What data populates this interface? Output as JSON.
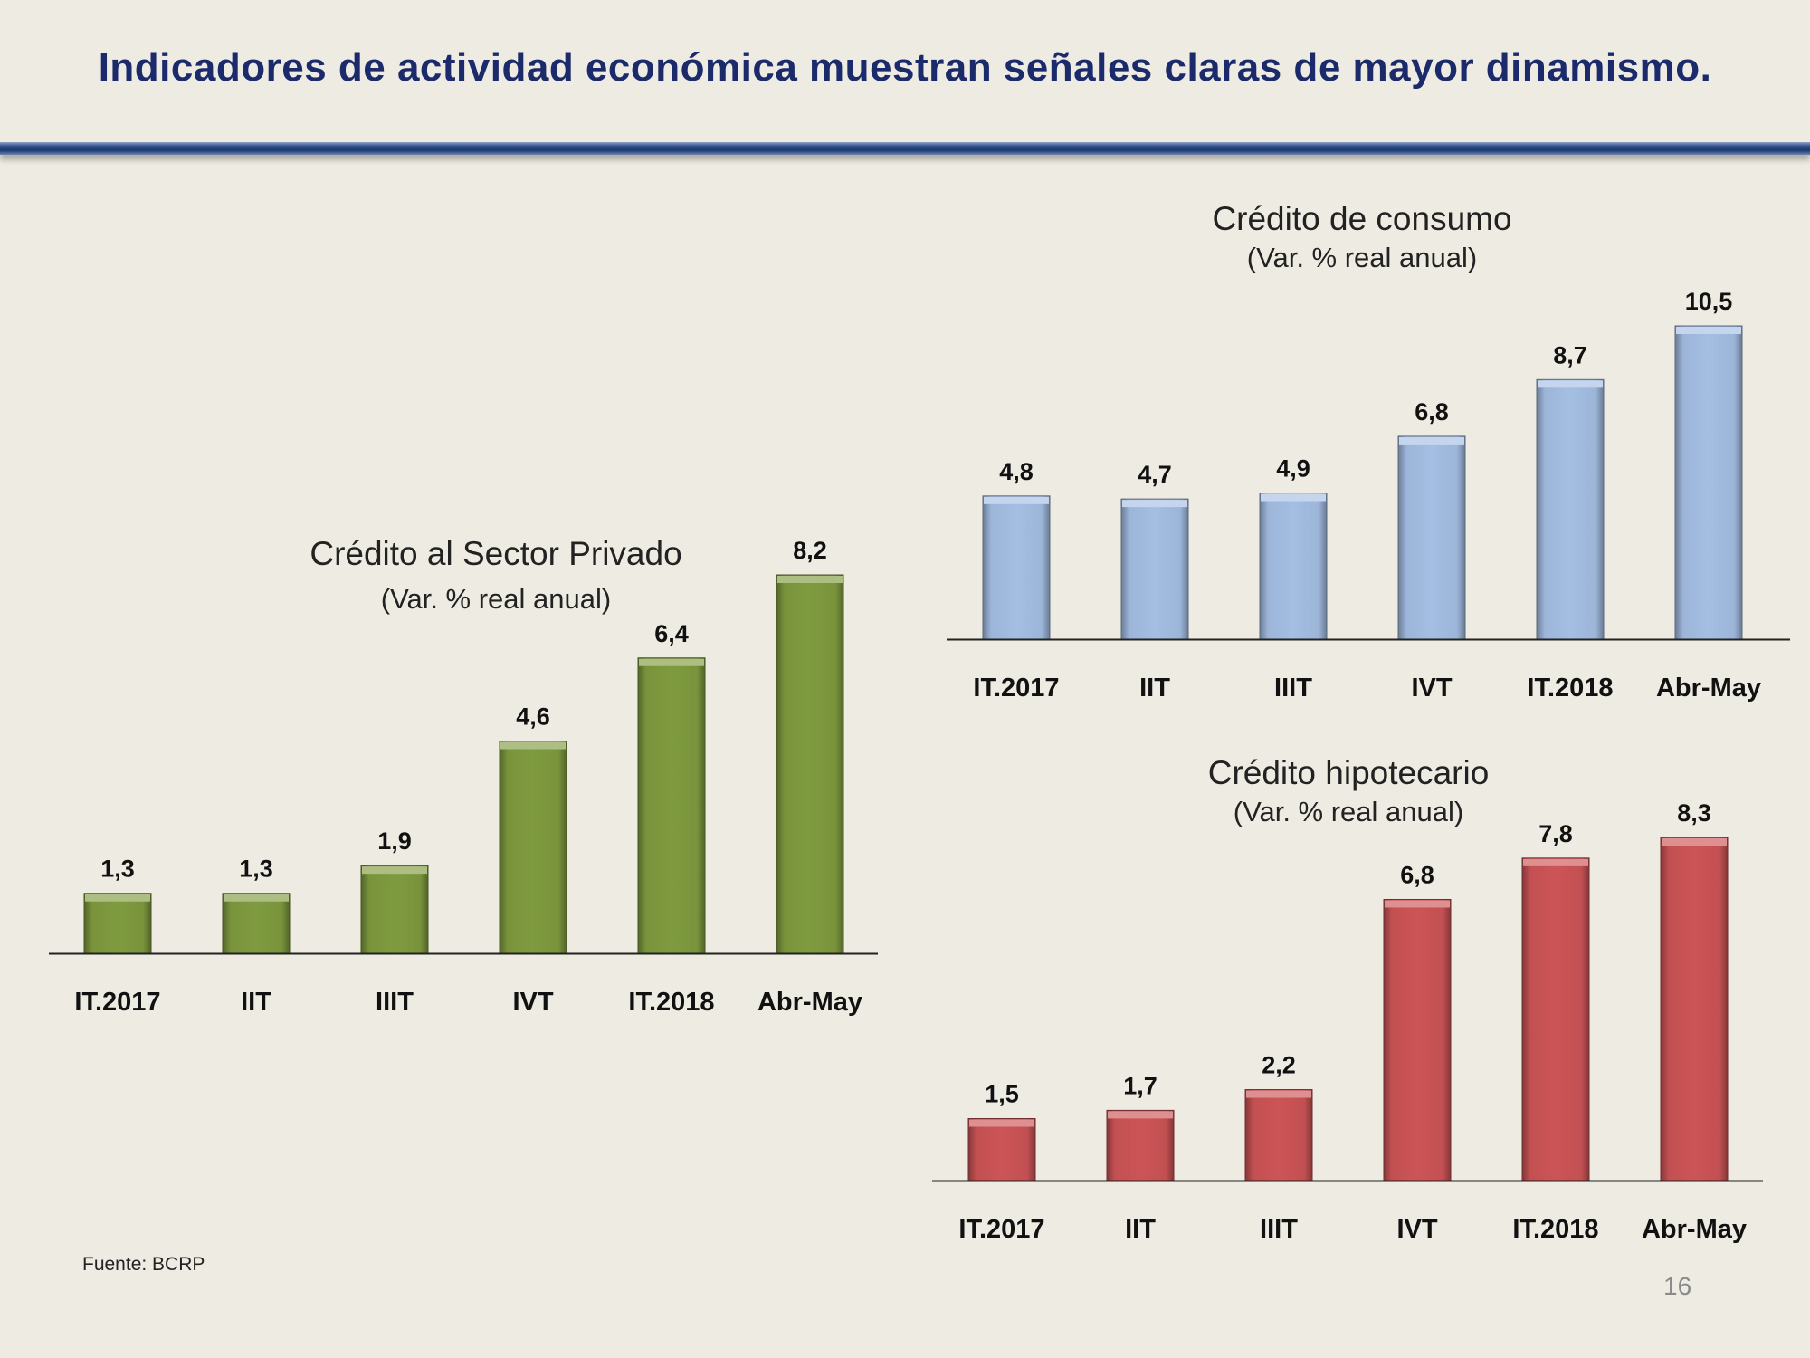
{
  "slide": {
    "title": "Indicadores de actividad económica muestran señales claras de mayor dinamismo.",
    "source": "Fuente: BCRP",
    "page_number": "16"
  },
  "chart_data": [
    {
      "id": "sector-privado",
      "type": "bar",
      "title": "Crédito al Sector Privado",
      "subtitle": "(Var. % real  anual)",
      "categories": [
        "IT.2017",
        "IIT",
        "IIIT",
        "IVT",
        "IT.2018",
        "Abr-May"
      ],
      "values": [
        1.3,
        1.3,
        1.9,
        4.6,
        6.4,
        8.2
      ],
      "value_labels": [
        "1,3",
        "1,3",
        "1,9",
        "4,6",
        "6,4",
        "8,2"
      ],
      "color": "#7f9b3f",
      "ylim": [
        0,
        8.2
      ],
      "grid": false
    },
    {
      "id": "consumo",
      "type": "bar",
      "title": "Crédito de consumo",
      "subtitle": "(Var. % real  anual)",
      "categories": [
        "IT.2017",
        "IIT",
        "IIIT",
        "IVT",
        "IT.2018",
        "Abr-May"
      ],
      "values": [
        4.8,
        4.7,
        4.9,
        6.8,
        8.7,
        10.5
      ],
      "value_labels": [
        "4,8",
        "4,7",
        "4,9",
        "6,8",
        "8,7",
        "10,5"
      ],
      "color": "#a4bfe3",
      "ylim": [
        0,
        10.5
      ],
      "grid": false
    },
    {
      "id": "hipotecario",
      "type": "bar",
      "title": "Crédito hipotecario",
      "subtitle": "(Var. % real  anual)",
      "categories": [
        "IT.2017",
        "IIT",
        "IIIT",
        "IVT",
        "IT.2018",
        "Abr-May"
      ],
      "values": [
        1.5,
        1.7,
        2.2,
        6.8,
        7.8,
        8.3
      ],
      "value_labels": [
        "1,5",
        "1,7",
        "2,2",
        "6,8",
        "7,8",
        "8,3"
      ],
      "color": "#cc5456",
      "ylim": [
        0,
        8.3
      ],
      "grid": false
    }
  ]
}
